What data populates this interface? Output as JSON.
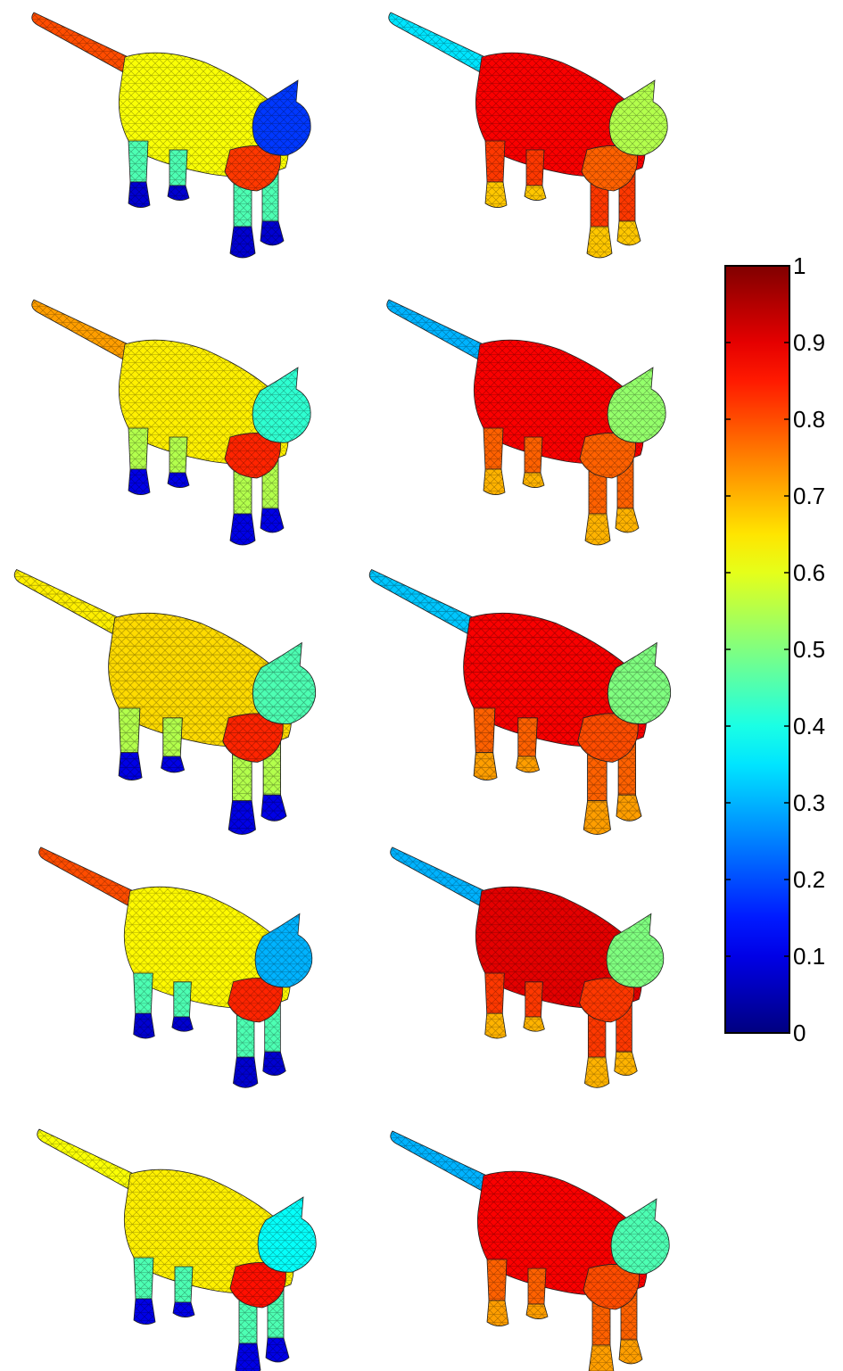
{
  "figure": {
    "rows": 5,
    "columns": 2,
    "panels": [
      {
        "row": 1,
        "col": 1,
        "pose": "standing",
        "colormap_regions": {
          "tail": 0.8,
          "body": 0.62,
          "chest": 0.82,
          "head": 0.18,
          "legs_top": 0.45,
          "paws": 0.08
        }
      },
      {
        "row": 1,
        "col": 2,
        "pose": "standing",
        "colormap_regions": {
          "tail": 0.35,
          "body": 0.88,
          "chest": 0.78,
          "head": 0.55,
          "legs_top": 0.82,
          "paws": 0.68
        }
      },
      {
        "row": 2,
        "col": 1,
        "pose": "stretched",
        "colormap_regions": {
          "tail": 0.72,
          "body": 0.64,
          "chest": 0.84,
          "head": 0.42,
          "legs_top": 0.55,
          "paws": 0.1
        }
      },
      {
        "row": 2,
        "col": 2,
        "pose": "stretched",
        "colormap_regions": {
          "tail": 0.3,
          "body": 0.88,
          "chest": 0.78,
          "head": 0.52,
          "legs_top": 0.78,
          "paws": 0.7
        }
      },
      {
        "row": 3,
        "col": 1,
        "pose": "crouched",
        "colormap_regions": {
          "tail": 0.64,
          "body": 0.66,
          "chest": 0.84,
          "head": 0.45,
          "legs_top": 0.55,
          "paws": 0.1
        }
      },
      {
        "row": 3,
        "col": 2,
        "pose": "crouched",
        "colormap_regions": {
          "tail": 0.32,
          "body": 0.88,
          "chest": 0.8,
          "head": 0.5,
          "legs_top": 0.78,
          "paws": 0.72
        }
      },
      {
        "row": 4,
        "col": 1,
        "pose": "standing",
        "colormap_regions": {
          "tail": 0.8,
          "body": 0.63,
          "chest": 0.84,
          "head": 0.3,
          "legs_top": 0.45,
          "paws": 0.08
        }
      },
      {
        "row": 4,
        "col": 2,
        "pose": "standing",
        "colormap_regions": {
          "tail": 0.3,
          "body": 0.9,
          "chest": 0.82,
          "head": 0.5,
          "legs_top": 0.82,
          "paws": 0.7
        }
      },
      {
        "row": 5,
        "col": 1,
        "pose": "standing-noisy",
        "colormap_regions": {
          "tail": 0.62,
          "body": 0.64,
          "chest": 0.86,
          "head": 0.38,
          "legs_top": 0.45,
          "paws": 0.1
        }
      },
      {
        "row": 5,
        "col": 2,
        "pose": "standing-noisy",
        "colormap_regions": {
          "tail": 0.3,
          "body": 0.88,
          "chest": 0.8,
          "head": 0.45,
          "legs_top": 0.78,
          "paws": 0.72
        }
      }
    ]
  },
  "colorbar": {
    "colormap": "jet",
    "min": 0,
    "max": 1,
    "ticks": [
      "0",
      "0.1",
      "0.2",
      "0.3",
      "0.4",
      "0.5",
      "0.6",
      "0.7",
      "0.8",
      "0.9",
      "1"
    ],
    "tick_values": [
      0,
      0.1,
      0.2,
      0.3,
      0.4,
      0.5,
      0.6,
      0.7,
      0.8,
      0.9,
      1
    ]
  }
}
